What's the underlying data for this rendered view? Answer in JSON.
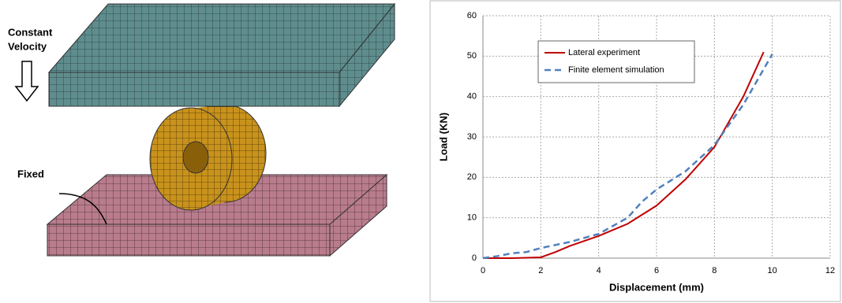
{
  "illustration": {
    "labels": [
      "Constant",
      "Velocity",
      "Fixed"
    ]
  },
  "chart_data": {
    "type": "line",
    "x_label": "Displacement (mm)",
    "y_label": "Load (KN)",
    "xlim": [
      0,
      12
    ],
    "xticks": [
      0,
      2,
      4,
      6,
      8,
      10,
      12
    ],
    "ylim": [
      0,
      60
    ],
    "yticks": [
      0,
      10,
      20,
      30,
      40,
      50,
      60
    ],
    "grid": true,
    "legend": "upper left",
    "series": [
      {
        "name": "Lateral experiment",
        "color": "#c00000",
        "dashed": false,
        "x": [
          0,
          1,
          2,
          2.5,
          3,
          4,
          5,
          6,
          7,
          8,
          9,
          9.7
        ],
        "values": [
          0,
          0,
          0.2,
          1.5,
          3,
          5.5,
          8.5,
          13,
          19.5,
          27.5,
          40,
          51
        ]
      },
      {
        "name": "Finite element simulation",
        "color": "#4f81bd",
        "dashed": true,
        "x": [
          0,
          0.5,
          1,
          1.5,
          2,
          3,
          4,
          5,
          5.5,
          6,
          7,
          8,
          9,
          10
        ],
        "values": [
          0,
          0.5,
          1.2,
          1.5,
          2.5,
          4,
          6,
          10,
          14,
          17,
          21.5,
          28,
          38,
          50.5
        ]
      }
    ]
  }
}
